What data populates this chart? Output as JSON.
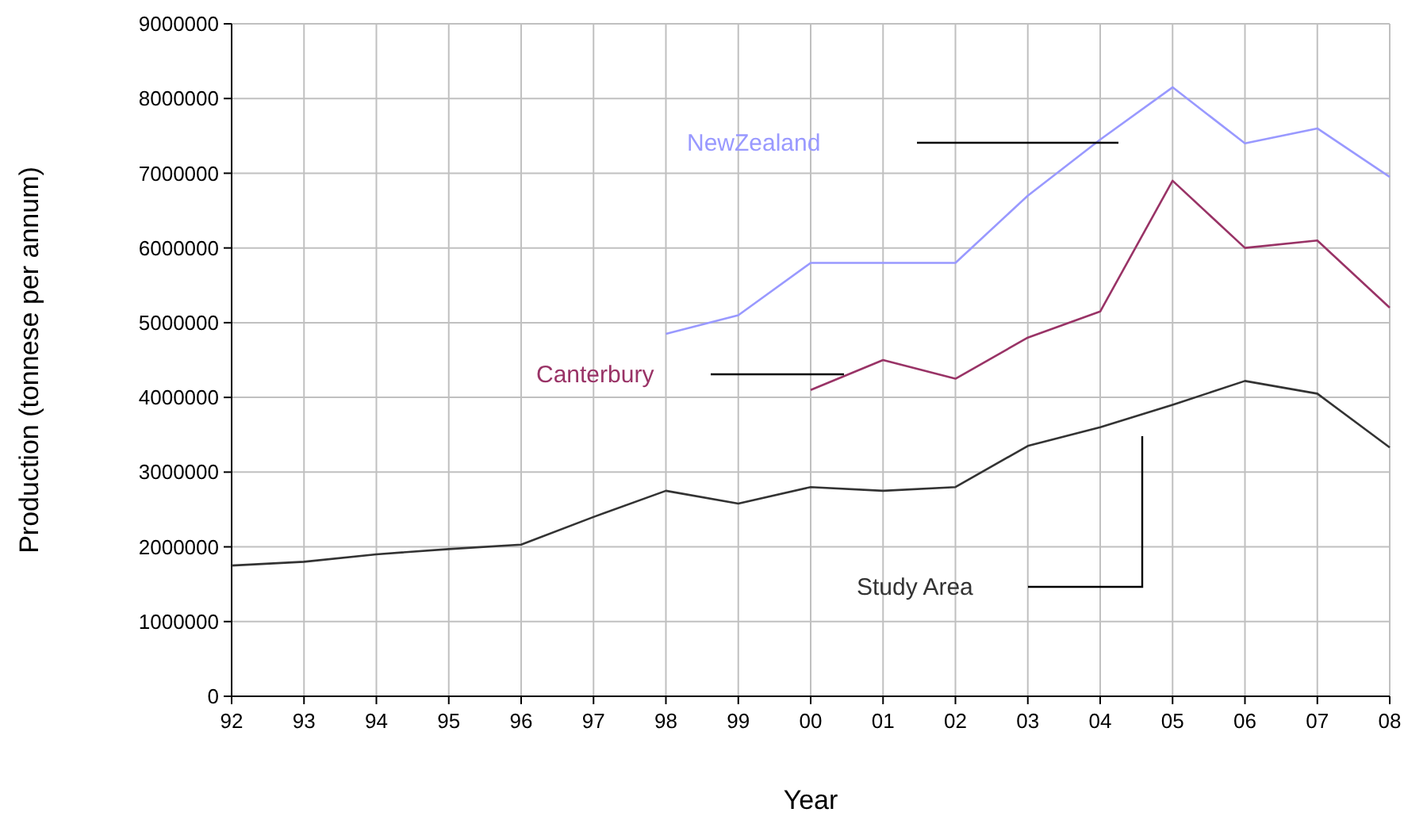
{
  "chart_data": {
    "type": "line",
    "xlabel": "Year",
    "ylabel": "Production (tonnese per annum)",
    "categories": [
      "92",
      "93",
      "94",
      "95",
      "96",
      "97",
      "98",
      "99",
      "00",
      "01",
      "02",
      "03",
      "04",
      "05",
      "06",
      "07",
      "08"
    ],
    "ylim": [
      0,
      9000000
    ],
    "yticks": [
      0,
      1000000,
      2000000,
      3000000,
      4000000,
      5000000,
      6000000,
      7000000,
      8000000,
      9000000
    ],
    "grid": true,
    "marker": "none",
    "line_style": "solid",
    "series": [
      {
        "name": "NewZealand",
        "color": "#9999ff",
        "values": [
          null,
          null,
          null,
          null,
          null,
          null,
          4850000,
          5100000,
          5800000,
          5800000,
          5800000,
          6700000,
          7450000,
          8150000,
          7400000,
          7600000,
          6950000
        ]
      },
      {
        "name": "Canterbury",
        "color": "#993366",
        "values": [
          null,
          null,
          null,
          null,
          null,
          null,
          null,
          null,
          4100000,
          4500000,
          4250000,
          4800000,
          5150000,
          6900000,
          6000000,
          6100000,
          5200000
        ]
      },
      {
        "name": "Study Area",
        "color": "#333333",
        "values": [
          1750000,
          1800000,
          1900000,
          1970000,
          2030000,
          2400000,
          2750000,
          2580000,
          2800000,
          2750000,
          2800000,
          3350000,
          3600000,
          3900000,
          4220000,
          4050000,
          3330000
        ]
      }
    ]
  }
}
